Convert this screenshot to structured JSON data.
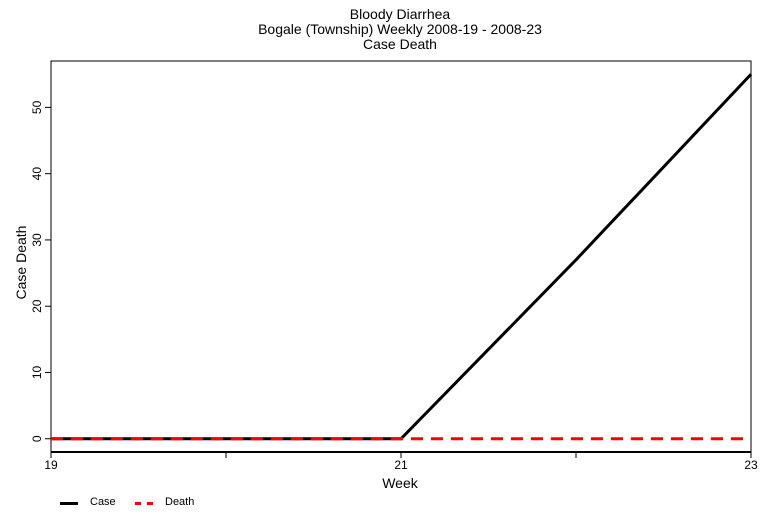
{
  "chart_data": {
    "type": "line",
    "title": "Bloody Diarrhea",
    "subtitle": "Bogale (Township) Weekly 2008-19 - 2008-23",
    "subtitle2": "Case Death",
    "xlabel": "Week",
    "ylabel": "Case Death",
    "x": [
      19,
      20,
      21,
      22,
      23
    ],
    "xticks": [
      19,
      20,
      21,
      22,
      23
    ],
    "xtick_labels": [
      "19",
      "",
      "21",
      "",
      "23"
    ],
    "xlim": [
      19,
      23
    ],
    "yticks": [
      0,
      10,
      20,
      30,
      40,
      50
    ],
    "ylim": [
      -2,
      57
    ],
    "grid": false,
    "legend_position": "bottom-left",
    "series": [
      {
        "name": "Case",
        "values": [
          0,
          0,
          0,
          27,
          55
        ],
        "color": "#000000",
        "dash": "solid"
      },
      {
        "name": "Death",
        "values": [
          0,
          0,
          0,
          0,
          0
        ],
        "color": "#ff0000",
        "dash": "dashed"
      }
    ]
  }
}
